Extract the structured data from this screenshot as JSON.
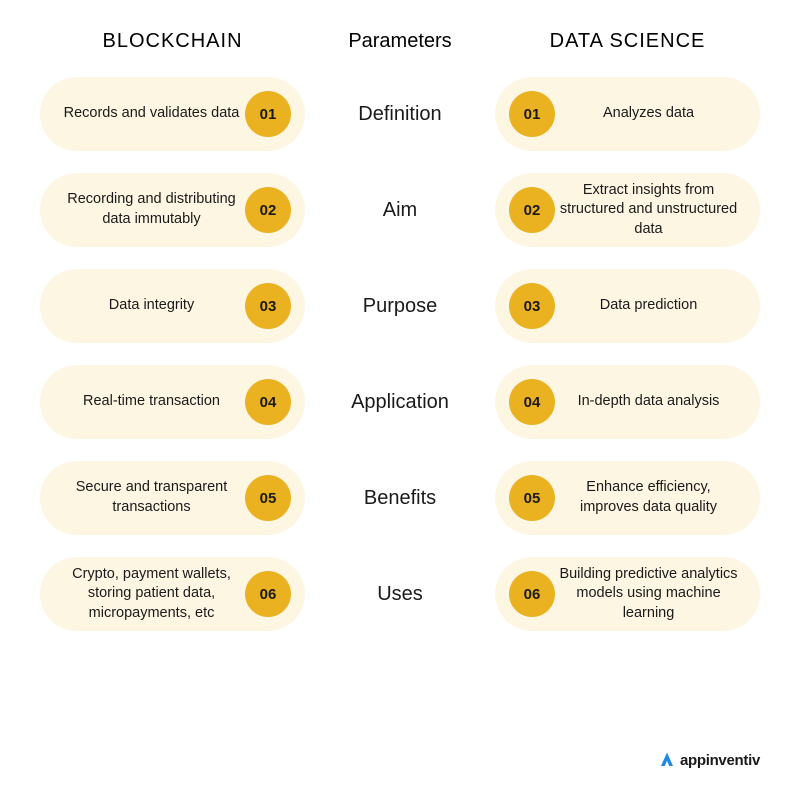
{
  "colors": {
    "pill_bg": "#fdf6e3",
    "badge_bg": "#eab121",
    "text": "#1a1a1a",
    "logo_accent": "#1e88e5"
  },
  "headers": {
    "left": "BLOCKCHAIN",
    "mid": "Parameters",
    "right": "DATA SCIENCE"
  },
  "rows": [
    {
      "num": "01",
      "param": "Definition",
      "left": "Records and validates data",
      "right": "Analyzes data"
    },
    {
      "num": "02",
      "param": "Aim",
      "left": "Recording and distributing data immutably",
      "right": "Extract insights from structured and unstructured data"
    },
    {
      "num": "03",
      "param": "Purpose",
      "left": "Data integrity",
      "right": "Data prediction"
    },
    {
      "num": "04",
      "param": "Application",
      "left": "Real-time transaction",
      "right": "In-depth data analysis"
    },
    {
      "num": "05",
      "param": "Benefits",
      "left": "Secure and transparent transactions",
      "right": "Enhance efficiency, improves data quality"
    },
    {
      "num": "06",
      "param": "Uses",
      "left": "Crypto, payment wallets, storing patient data, micropayments, etc",
      "right": "Building predictive analytics models using machine learning"
    }
  ],
  "footer": {
    "brand": "appinventiv"
  }
}
